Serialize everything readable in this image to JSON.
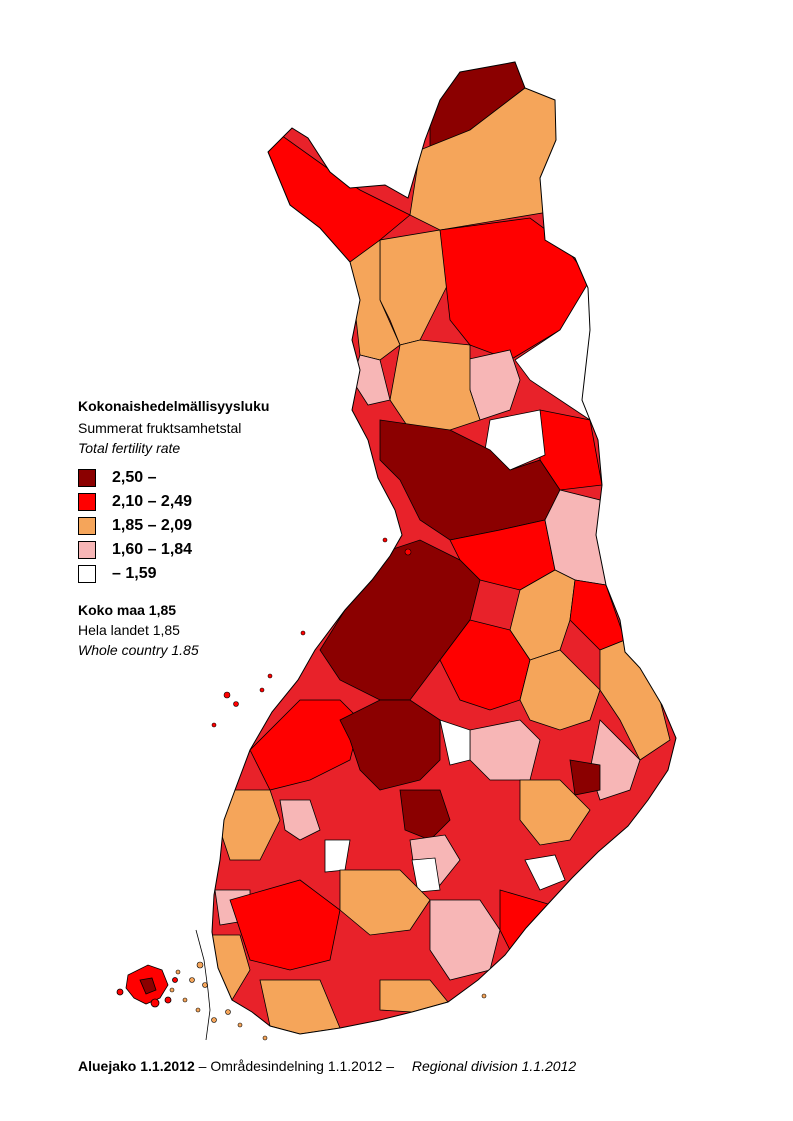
{
  "legend": {
    "title": "Kokonaishedelmällisyysluku",
    "subtitle_sv": "Summerat fruktsamhetstal",
    "subtitle_en": "Total fertility rate",
    "classes": [
      {
        "label": "2,50 –",
        "color": "#8b0000"
      },
      {
        "label": "2,10 – 2,49",
        "color": "#ff0000"
      },
      {
        "label": "1,85 – 2,09",
        "color": "#f5a55a"
      },
      {
        "label": "1,60 – 1,84",
        "color": "#f7b6b6"
      },
      {
        "label": "– 1,59",
        "color": "#ffffff"
      }
    ]
  },
  "country": {
    "fi": "Koko maa 1,85",
    "sv": "Hela landet 1,85",
    "en": "Whole country 1.85"
  },
  "footer": {
    "fi_bold": "Aluejako 1.1.2012",
    "sv": "– Områdesindelning 1.1.2012 –",
    "en": "Regional division 1.1.2012"
  }
}
